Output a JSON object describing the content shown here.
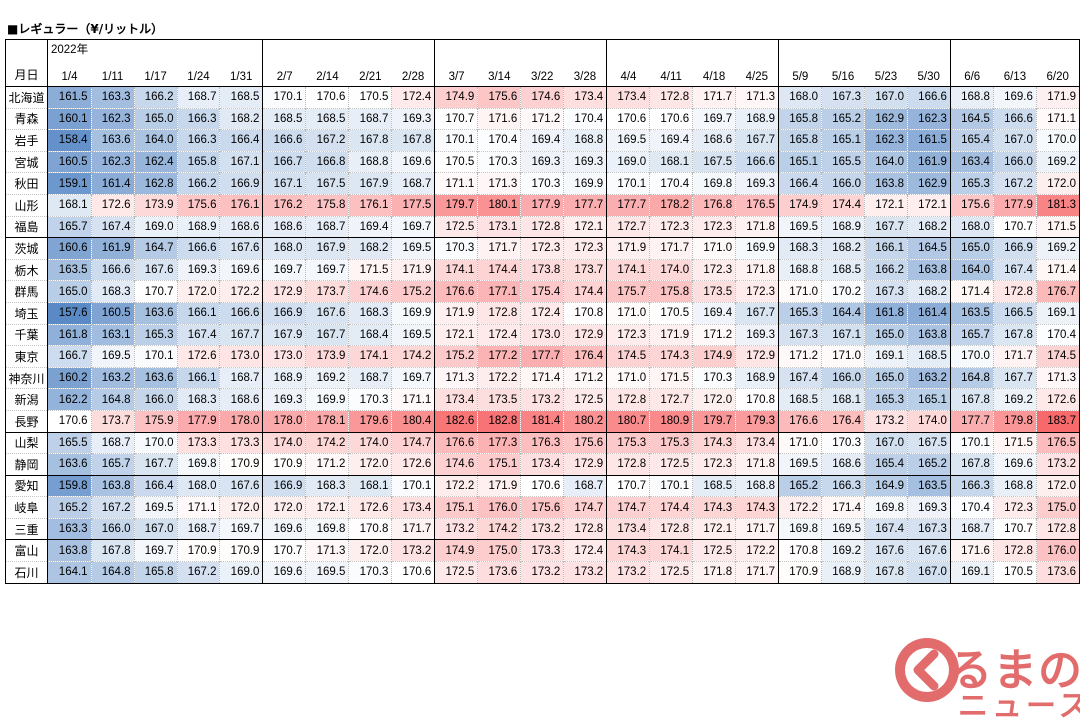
{
  "title": "■レギュラー（¥/リットル）",
  "year_label": "2022年",
  "corner_label": "月日",
  "dates": [
    "1/4",
    "1/11",
    "1/17",
    "1/24",
    "1/31",
    "2/7",
    "2/14",
    "2/21",
    "2/28",
    "3/7",
    "3/14",
    "3/22",
    "3/28",
    "4/4",
    "4/11",
    "4/18",
    "4/25",
    "5/9",
    "5/16",
    "5/23",
    "5/30",
    "6/6",
    "6/13",
    "6/20"
  ],
  "rows": [
    {
      "pref": "北海道",
      "values": [
        "161.5",
        "163.3",
        "166.2",
        "168.7",
        "168.5",
        "170.1",
        "170.6",
        "170.5",
        "172.4",
        "174.9",
        "175.6",
        "174.6",
        "173.4",
        "173.4",
        "172.8",
        "171.7",
        "171.3",
        "168.0",
        "167.3",
        "167.0",
        "166.6",
        "168.8",
        "169.6",
        "171.9"
      ]
    },
    {
      "pref": "青森",
      "values": [
        "160.1",
        "162.3",
        "165.0",
        "166.3",
        "168.2",
        "168.5",
        "168.5",
        "168.7",
        "169.3",
        "170.7",
        "171.6",
        "171.2",
        "170.4",
        "170.6",
        "170.6",
        "169.7",
        "168.9",
        "165.8",
        "165.2",
        "162.9",
        "162.3",
        "164.5",
        "166.6",
        "171.1"
      ]
    },
    {
      "pref": "岩手",
      "values": [
        "158.4",
        "163.6",
        "164.0",
        "166.3",
        "166.4",
        "166.6",
        "167.2",
        "167.8",
        "167.8",
        "170.1",
        "170.4",
        "169.4",
        "168.8",
        "169.5",
        "169.4",
        "168.6",
        "167.7",
        "165.8",
        "165.1",
        "162.3",
        "161.5",
        "165.4",
        "167.0",
        "170.0"
      ]
    },
    {
      "pref": "宮城",
      "values": [
        "160.5",
        "162.3",
        "162.4",
        "165.8",
        "167.1",
        "166.7",
        "166.8",
        "168.8",
        "169.6",
        "170.5",
        "170.3",
        "169.3",
        "169.3",
        "169.0",
        "168.1",
        "167.5",
        "166.6",
        "165.1",
        "165.5",
        "164.0",
        "161.9",
        "163.4",
        "166.0",
        "169.2"
      ]
    },
    {
      "pref": "秋田",
      "values": [
        "159.1",
        "161.4",
        "162.8",
        "166.2",
        "166.9",
        "167.1",
        "167.5",
        "167.9",
        "168.7",
        "171.1",
        "171.3",
        "170.3",
        "169.9",
        "170.1",
        "170.4",
        "169.8",
        "169.3",
        "166.4",
        "166.0",
        "163.8",
        "162.9",
        "165.3",
        "167.2",
        "172.0"
      ]
    },
    {
      "pref": "山形",
      "values": [
        "168.1",
        "172.6",
        "173.9",
        "175.6",
        "176.1",
        "176.2",
        "175.8",
        "176.1",
        "177.5",
        "179.7",
        "180.1",
        "177.9",
        "177.7",
        "177.7",
        "178.2",
        "176.8",
        "176.5",
        "174.9",
        "174.4",
        "172.1",
        "172.1",
        "175.6",
        "177.9",
        "181.3"
      ]
    },
    {
      "pref": "福島",
      "values": [
        "165.7",
        "167.4",
        "169.0",
        "168.9",
        "168.6",
        "168.6",
        "168.7",
        "169.4",
        "169.7",
        "172.5",
        "173.1",
        "172.8",
        "172.1",
        "172.7",
        "172.3",
        "172.3",
        "171.8",
        "169.5",
        "168.9",
        "167.7",
        "168.2",
        "168.0",
        "170.7",
        "171.5"
      ]
    },
    {
      "pref": "茨城",
      "values": [
        "160.6",
        "161.9",
        "164.7",
        "166.6",
        "167.6",
        "168.0",
        "167.9",
        "168.2",
        "169.5",
        "170.3",
        "171.7",
        "172.3",
        "172.3",
        "171.9",
        "171.7",
        "171.0",
        "169.9",
        "168.3",
        "168.2",
        "166.1",
        "164.5",
        "165.0",
        "166.9",
        "169.2"
      ]
    },
    {
      "pref": "栃木",
      "values": [
        "163.5",
        "166.6",
        "167.6",
        "169.3",
        "169.6",
        "169.7",
        "169.7",
        "171.5",
        "171.9",
        "174.1",
        "174.4",
        "173.8",
        "173.7",
        "174.1",
        "174.0",
        "172.3",
        "171.8",
        "168.8",
        "168.5",
        "166.2",
        "163.8",
        "164.0",
        "167.4",
        "171.4"
      ]
    },
    {
      "pref": "群馬",
      "values": [
        "165.0",
        "168.3",
        "170.7",
        "172.0",
        "172.2",
        "172.9",
        "173.7",
        "174.6",
        "175.2",
        "176.6",
        "177.1",
        "175.4",
        "174.4",
        "175.7",
        "175.8",
        "173.5",
        "172.3",
        "171.0",
        "170.2",
        "167.3",
        "168.2",
        "171.4",
        "172.8",
        "176.7"
      ]
    },
    {
      "pref": "埼玉",
      "values": [
        "157.6",
        "160.5",
        "163.6",
        "166.1",
        "166.6",
        "166.9",
        "167.6",
        "168.3",
        "169.9",
        "171.9",
        "172.8",
        "172.4",
        "170.8",
        "171.0",
        "170.5",
        "169.4",
        "167.7",
        "165.3",
        "164.4",
        "161.8",
        "161.4",
        "163.5",
        "166.5",
        "169.1"
      ]
    },
    {
      "pref": "千葉",
      "values": [
        "161.8",
        "163.1",
        "165.3",
        "167.4",
        "167.7",
        "167.9",
        "167.7",
        "168.4",
        "169.5",
        "172.1",
        "172.4",
        "173.0",
        "172.9",
        "172.3",
        "171.9",
        "171.2",
        "169.3",
        "167.3",
        "167.1",
        "165.0",
        "163.8",
        "165.7",
        "167.8",
        "170.4"
      ]
    },
    {
      "pref": "東京",
      "values": [
        "166.7",
        "169.5",
        "170.1",
        "172.6",
        "173.0",
        "173.0",
        "173.9",
        "174.1",
        "174.2",
        "175.2",
        "177.2",
        "177.7",
        "176.4",
        "174.5",
        "174.3",
        "174.9",
        "172.9",
        "171.2",
        "171.0",
        "169.1",
        "168.5",
        "170.0",
        "171.7",
        "174.5"
      ]
    },
    {
      "pref": "神奈川",
      "values": [
        "160.2",
        "163.2",
        "163.6",
        "166.1",
        "168.7",
        "168.9",
        "169.2",
        "168.7",
        "169.7",
        "171.3",
        "172.2",
        "171.4",
        "171.2",
        "171.0",
        "171.5",
        "170.3",
        "168.9",
        "167.4",
        "166.0",
        "165.0",
        "163.2",
        "164.8",
        "167.7",
        "171.3"
      ]
    },
    {
      "pref": "新潟",
      "values": [
        "162.2",
        "164.8",
        "166.0",
        "168.3",
        "168.6",
        "169.3",
        "169.9",
        "170.3",
        "171.1",
        "173.4",
        "173.5",
        "173.2",
        "172.5",
        "172.8",
        "172.7",
        "172.0",
        "170.8",
        "168.5",
        "168.1",
        "165.3",
        "165.1",
        "167.8",
        "169.2",
        "172.6"
      ]
    },
    {
      "pref": "長野",
      "values": [
        "170.6",
        "173.7",
        "175.9",
        "177.9",
        "178.0",
        "178.0",
        "178.1",
        "179.6",
        "180.4",
        "182.6",
        "182.8",
        "181.4",
        "180.2",
        "180.7",
        "180.9",
        "179.7",
        "179.3",
        "176.6",
        "176.4",
        "173.2",
        "174.0",
        "177.7",
        "179.8",
        "183.7"
      ]
    },
    {
      "pref": "山梨",
      "values": [
        "165.5",
        "168.7",
        "170.0",
        "173.3",
        "173.3",
        "174.0",
        "174.2",
        "174.0",
        "174.7",
        "176.6",
        "177.3",
        "176.3",
        "175.6",
        "175.3",
        "175.3",
        "174.3",
        "173.4",
        "171.0",
        "170.3",
        "167.0",
        "167.5",
        "170.1",
        "171.5",
        "176.5"
      ]
    },
    {
      "pref": "静岡",
      "values": [
        "163.6",
        "165.7",
        "167.7",
        "169.8",
        "170.9",
        "170.9",
        "171.2",
        "172.0",
        "172.6",
        "174.6",
        "175.1",
        "173.4",
        "172.9",
        "172.8",
        "172.5",
        "172.3",
        "171.8",
        "169.5",
        "168.6",
        "165.4",
        "165.2",
        "167.8",
        "169.6",
        "173.2"
      ]
    },
    {
      "pref": "愛知",
      "values": [
        "159.8",
        "163.8",
        "166.4",
        "168.0",
        "167.6",
        "166.9",
        "168.3",
        "168.1",
        "170.1",
        "172.2",
        "171.9",
        "170.6",
        "168.7",
        "170.7",
        "170.1",
        "168.5",
        "168.8",
        "165.2",
        "166.3",
        "164.9",
        "163.5",
        "166.3",
        "168.8",
        "172.0"
      ]
    },
    {
      "pref": "岐阜",
      "values": [
        "165.2",
        "167.2",
        "169.5",
        "171.1",
        "172.0",
        "172.0",
        "172.1",
        "172.6",
        "173.4",
        "175.1",
        "176.0",
        "175.6",
        "174.7",
        "174.7",
        "174.4",
        "174.3",
        "174.3",
        "172.2",
        "171.4",
        "169.8",
        "169.3",
        "170.4",
        "172.3",
        "175.0"
      ]
    },
    {
      "pref": "三重",
      "values": [
        "163.3",
        "166.0",
        "167.0",
        "168.7",
        "169.7",
        "169.6",
        "169.8",
        "170.8",
        "171.7",
        "173.2",
        "174.2",
        "173.2",
        "172.8",
        "173.4",
        "172.8",
        "172.1",
        "171.7",
        "169.8",
        "169.5",
        "167.4",
        "167.3",
        "168.7",
        "170.7",
        "172.8"
      ]
    },
    {
      "pref": "富山",
      "values": [
        "163.8",
        "167.8",
        "169.7",
        "170.9",
        "170.9",
        "170.7",
        "171.3",
        "172.0",
        "173.2",
        "174.9",
        "175.0",
        "173.3",
        "172.4",
        "174.3",
        "174.1",
        "172.5",
        "172.2",
        "170.8",
        "169.2",
        "167.6",
        "167.6",
        "171.6",
        "172.8",
        "176.0"
      ]
    },
    {
      "pref": "石川",
      "values": [
        "164.1",
        "164.8",
        "165.8",
        "167.2",
        "169.0",
        "169.6",
        "169.5",
        "170.3",
        "170.6",
        "172.5",
        "173.6",
        "173.2",
        "173.2",
        "173.2",
        "172.5",
        "171.8",
        "171.7",
        "170.9",
        "168.9",
        "167.8",
        "167.0",
        "169.1",
        "170.5",
        "173.6"
      ]
    }
  ],
  "color_scale": {
    "min": 157.6,
    "mid": 170.6,
    "max": 183.7,
    "low_color": "#5a8ac6",
    "mid_color": "#ffffff",
    "high_color": "#f8696b"
  },
  "logo": {
    "main": "るまの",
    "sub": "ニュース",
    "color": "#e26b6b"
  }
}
